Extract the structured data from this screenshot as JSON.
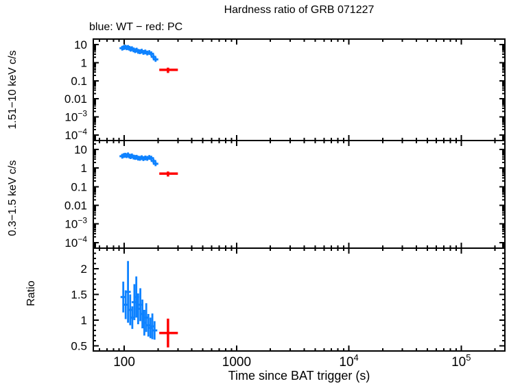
{
  "title": "Hardness ratio of GRB 071227",
  "subtitle": "blue: WT − red: PC",
  "colors": {
    "wt": "#0e82ff",
    "pc": "#ff0000",
    "axis": "#000000",
    "background": "#ffffff"
  },
  "chart_data": {
    "type": "scatter",
    "title": "Hardness ratio of GRB 071227",
    "legend_note": "blue: WT − red: PC",
    "xlabel": "Time since BAT trigger (s)",
    "xscale": "log",
    "xlim": [
      53,
      245000
    ],
    "xticks_major": [
      {
        "v": 100,
        "label": "100"
      },
      {
        "v": 1000,
        "label": "1000"
      },
      {
        "v": 10000,
        "label": "10",
        "sup": "4"
      },
      {
        "v": 100000,
        "label": "10",
        "sup": "5"
      }
    ],
    "panels": [
      {
        "name": "hard-rate",
        "ylabel": "1.51−10 keV c/s",
        "yscale": "log",
        "ylim": [
          5e-05,
          20
        ],
        "yticks": [
          {
            "v": 10,
            "label": "10"
          },
          {
            "v": 1,
            "label": "1"
          },
          {
            "v": 0.1,
            "label": "0.1"
          },
          {
            "v": 0.01,
            "label": "0.01"
          },
          {
            "v": 0.001,
            "label": "10",
            "sup": "−3"
          },
          {
            "v": 0.0001,
            "label": "10",
            "sup": "−4"
          }
        ],
        "series": [
          {
            "name": "WT",
            "color": "wt",
            "t": [
              96,
              99,
              102,
              105,
              108,
              111,
              114,
              117,
              121,
              125,
              129,
              133,
              138,
              143,
              148,
              154,
              160,
              167,
              174,
              182,
              190
            ],
            "y": [
              6.3,
              6.8,
              7.2,
              6.6,
              6.9,
              6.2,
              5.5,
              5.9,
              5.1,
              4.6,
              4.9,
              4.2,
              4.0,
              4.3,
              3.7,
              3.9,
              3.4,
              3.6,
              3.1,
              2.1,
              1.5
            ]
          },
          {
            "name": "PC",
            "color": "pc",
            "t": [
              245
            ],
            "t_lo": [
              205
            ],
            "t_hi": [
              300
            ],
            "y": [
              0.4
            ],
            "y_err": [
              0.13
            ]
          }
        ]
      },
      {
        "name": "soft-rate",
        "ylabel": "0.3−1.5 keV c/s",
        "yscale": "log",
        "ylim": [
          5e-05,
          30
        ],
        "yticks": [
          {
            "v": 10,
            "label": "10"
          },
          {
            "v": 1,
            "label": "1"
          },
          {
            "v": 0.1,
            "label": "0.1"
          },
          {
            "v": 0.01,
            "label": "0.01"
          },
          {
            "v": 0.001,
            "label": "10",
            "sup": "−3"
          },
          {
            "v": 0.0001,
            "label": "10",
            "sup": "−4"
          }
        ],
        "series": [
          {
            "name": "WT",
            "color": "wt",
            "t": [
              96,
              99,
              102,
              105,
              108,
              111,
              114,
              117,
              121,
              125,
              129,
              133,
              138,
              143,
              148,
              154,
              160,
              167,
              174,
              182,
              190
            ],
            "y": [
              4.3,
              4.7,
              4.9,
              4.6,
              5.1,
              4.4,
              4.1,
              4.5,
              3.9,
              3.7,
              3.8,
              3.4,
              3.3,
              3.6,
              3.2,
              3.5,
              3.3,
              3.7,
              3.4,
              2.4,
              1.7
            ]
          },
          {
            "name": "PC",
            "color": "pc",
            "t": [
              245
            ],
            "t_lo": [
              205
            ],
            "t_hi": [
              300
            ],
            "y": [
              0.5
            ],
            "y_err": [
              0.15
            ]
          }
        ]
      },
      {
        "name": "ratio",
        "ylabel": "Ratio",
        "yscale": "linear",
        "ylim": [
          0.4,
          2.4
        ],
        "yticks": [
          {
            "v": 2,
            "label": "2"
          },
          {
            "v": 1.5,
            "label": "1.5"
          },
          {
            "v": 1,
            "label": "1"
          },
          {
            "v": 0.5,
            "label": "0.5"
          }
        ],
        "series": [
          {
            "name": "WT",
            "color": "wt",
            "t": [
              98,
              103,
              108,
              113,
              118,
              123,
              128,
              133,
              139,
              145,
              151,
              157,
              164,
              171,
              178,
              186
            ],
            "y": [
              1.45,
              1.3,
              1.55,
              1.2,
              1.05,
              1.35,
              1.45,
              1.22,
              1.3,
              1.12,
              0.95,
              1.05,
              0.9,
              0.85,
              0.88,
              0.8
            ],
            "y_err": [
              0.3,
              0.28,
              0.6,
              0.3,
              0.22,
              0.35,
              0.4,
              0.3,
              0.32,
              0.28,
              0.25,
              0.28,
              0.22,
              0.2,
              0.25,
              0.18
            ]
          },
          {
            "name": "PC",
            "color": "pc",
            "t": [
              245
            ],
            "t_lo": [
              205
            ],
            "t_hi": [
              300
            ],
            "y": [
              0.75
            ],
            "y_err": [
              0.28
            ]
          }
        ]
      }
    ]
  }
}
